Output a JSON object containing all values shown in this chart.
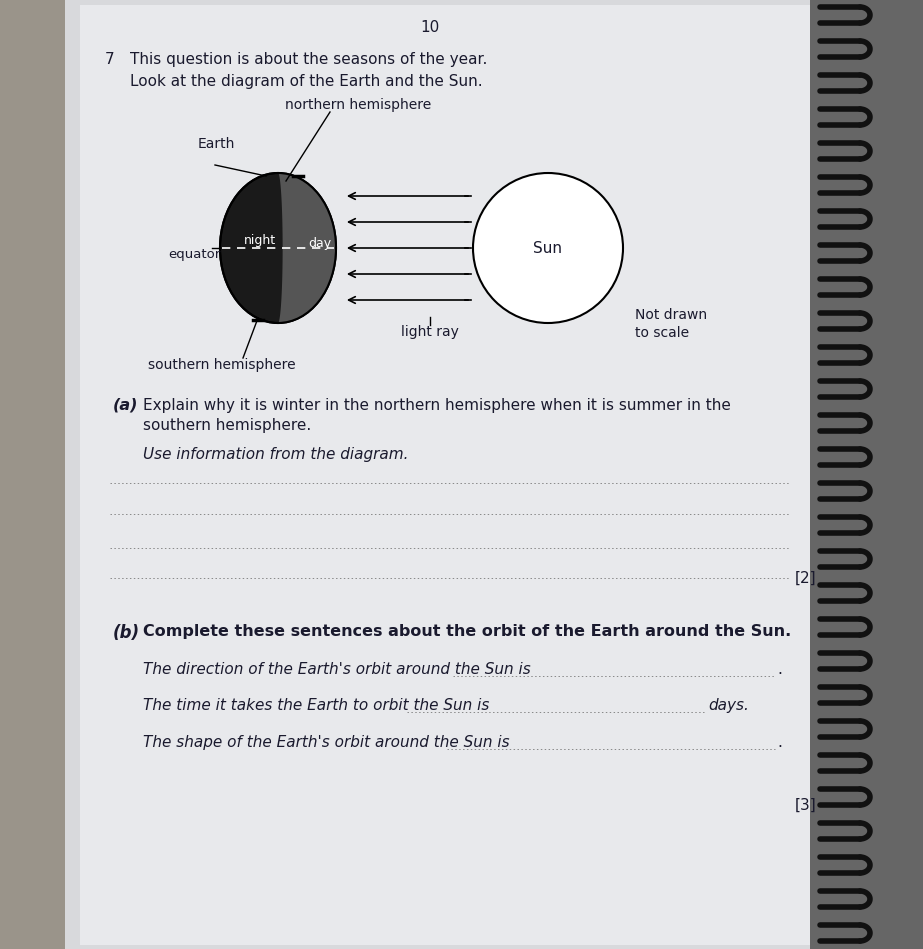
{
  "page_number": "10",
  "question_number": "7",
  "question_intro": "This question is about the seasons of the year.",
  "question_look": "Look at the diagram of the Earth and the Sun.",
  "part_a_label": "(a)",
  "part_a_text": "Explain why it is winter in the northern hemisphere when it is summer in the",
  "part_a_text2": "southern hemisphere.",
  "part_a_instruction": "Use information from the diagram.",
  "part_a_mark": "[2]",
  "part_b_label": "(b)",
  "part_b_intro": "Complete these sentences about the orbit of the Earth around the Sun.",
  "part_b_line1": "The direction of the Earth's orbit around the Sun is",
  "part_b_line2": "The time it takes the Earth to orbit the Sun is",
  "part_b_line2_end": "days.",
  "part_b_line3": "The shape of the Earth's orbit around the Sun is",
  "part_b_mark": "[3]",
  "diagram_labels": {
    "northern_hemisphere": "northern hemisphere",
    "earth": "Earth",
    "night": "night",
    "day": "day",
    "equator": "equator",
    "southern_hemisphere": "southern hemisphere",
    "light_ray": "light ray",
    "not_drawn": "Not drawn",
    "to_scale": "to scale",
    "sun": "Sun"
  },
  "bg_color_left": "#b0aa9e",
  "paper_color": "#dcdde0",
  "text_color": "#1a1a2e",
  "earth_dark_color": "#111111",
  "sun_color": "#ffffff",
  "spiral_color": "#222222",
  "spiral_bg": "#7a7a7a",
  "right_edge_color": "#888888"
}
